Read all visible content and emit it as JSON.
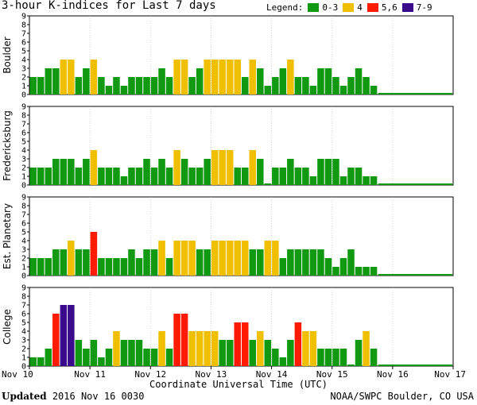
{
  "title": "3-hour K-indices for Last 7 days",
  "legend": {
    "label": "Legend:",
    "items": [
      {
        "label": "0-3",
        "color": "#119911"
      },
      {
        "label": "4",
        "color": "#f0c000"
      },
      {
        "label": "5,6",
        "color": "#ff1a00"
      },
      {
        "label": "7-9",
        "color": "#3a0a8c"
      }
    ]
  },
  "footer": {
    "updated_label": "Updated",
    "updated_value": "2016 Nov 16 0030",
    "source": "NOAA/SWPC Boulder, CO USA"
  },
  "chart_data": {
    "type": "bar",
    "title": "3-hour K-indices for Last 7 days",
    "xlabel": "Coordinate Universal Time (UTC)",
    "x_ticks": [
      "Nov 10",
      "Nov 11",
      "Nov 12",
      "Nov 13",
      "Nov 14",
      "Nov 15",
      "Nov 16",
      "Nov 17"
    ],
    "ylim": [
      0,
      9
    ],
    "y_ticks": [
      0,
      1,
      2,
      3,
      4,
      5,
      6,
      7,
      8,
      9
    ],
    "series": [
      {
        "name": "Boulder",
        "values": [
          2,
          2,
          3,
          3,
          4,
          4,
          2,
          3,
          4,
          2,
          1,
          2,
          1,
          2,
          2,
          2,
          2,
          3,
          2,
          4,
          4,
          2,
          3,
          4,
          4,
          4,
          4,
          4,
          2,
          4,
          3,
          1,
          2,
          3,
          4,
          2,
          2,
          1,
          3,
          3,
          2,
          1,
          2,
          3,
          2,
          1
        ]
      },
      {
        "name": "Fredericksburg",
        "values": [
          2,
          2,
          2,
          3,
          3,
          3,
          2,
          3,
          4,
          2,
          2,
          2,
          1,
          2,
          2,
          3,
          2,
          3,
          2,
          4,
          3,
          2,
          2,
          3,
          4,
          4,
          4,
          2,
          2,
          4,
          3,
          0,
          2,
          2,
          3,
          2,
          2,
          1,
          3,
          3,
          3,
          1,
          2,
          2,
          1,
          1
        ]
      },
      {
        "name": "Est. Planetary",
        "values": [
          2,
          2,
          2,
          3,
          3,
          4,
          3,
          3,
          5,
          2,
          2,
          2,
          2,
          3,
          2,
          3,
          3,
          4,
          2,
          4,
          4,
          4,
          3,
          3,
          4,
          4,
          4,
          4,
          4,
          3,
          3,
          4,
          4,
          2,
          3,
          3,
          3,
          3,
          3,
          2,
          1,
          2,
          3,
          1,
          1,
          1
        ]
      },
      {
        "name": "College",
        "values": [
          1,
          1,
          2,
          6,
          7,
          7,
          3,
          2,
          3,
          1,
          2,
          4,
          3,
          3,
          3,
          2,
          2,
          4,
          2,
          6,
          6,
          4,
          4,
          4,
          4,
          3,
          3,
          5,
          5,
          3,
          4,
          3,
          2,
          1,
          3,
          5,
          4,
          4,
          2,
          2,
          2,
          2,
          0,
          3,
          4,
          2
        ]
      }
    ]
  }
}
